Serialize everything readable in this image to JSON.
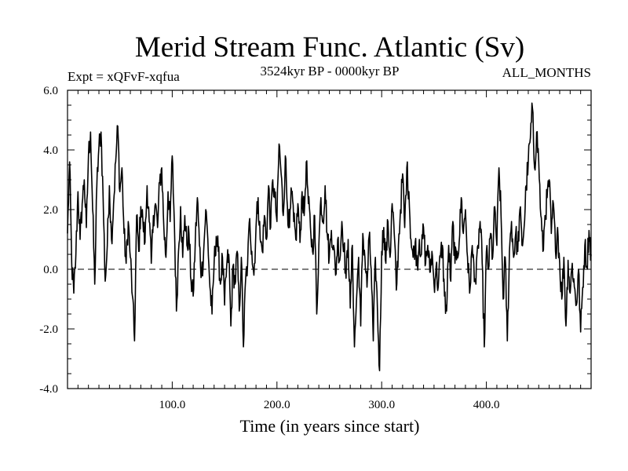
{
  "chart_data": {
    "type": "line",
    "title": "Merid Stream Func. Atlantic (Sv)",
    "subtitle_left": "Expt = xQFvF-xqfua",
    "subtitle_center": "3524kyr BP - 0000kyr BP",
    "subtitle_right": "ALL_MONTHS",
    "xlabel": "Time (in years since start)",
    "ylabel": "",
    "xlim": [
      0,
      500
    ],
    "ylim": [
      -4.0,
      6.0
    ],
    "xticks": [
      100,
      200,
      300,
      400
    ],
    "xtick_labels": [
      "100.0",
      "200.0",
      "300.0",
      "400.0"
    ],
    "yticks": [
      -4.0,
      -2.0,
      0.0,
      2.0,
      4.0,
      6.0
    ],
    "ytick_labels": [
      "-4.0",
      "-2.0",
      "0.0",
      "2.0",
      "4.0",
      "6.0"
    ],
    "reference_line": 0.0,
    "keypoints": [
      [
        0,
        1.2
      ],
      [
        2,
        3.6
      ],
      [
        4,
        0.2
      ],
      [
        6,
        -0.8
      ],
      [
        8,
        0.5
      ],
      [
        10,
        2.6
      ],
      [
        12,
        1.0
      ],
      [
        14,
        2.2
      ],
      [
        16,
        3.0
      ],
      [
        18,
        1.4
      ],
      [
        20,
        3.8
      ],
      [
        22,
        4.6
      ],
      [
        24,
        2.0
      ],
      [
        26,
        -0.5
      ],
      [
        28,
        2.8
      ],
      [
        30,
        4.1
      ],
      [
        32,
        4.6
      ],
      [
        34,
        2.4
      ],
      [
        36,
        -0.4
      ],
      [
        38,
        0.8
      ],
      [
        40,
        2.8
      ],
      [
        42,
        1.0
      ],
      [
        44,
        2.2
      ],
      [
        46,
        3.6
      ],
      [
        48,
        4.8
      ],
      [
        50,
        2.6
      ],
      [
        52,
        3.4
      ],
      [
        54,
        1.2
      ],
      [
        56,
        0.2
      ],
      [
        58,
        1.6
      ],
      [
        60,
        0.4
      ],
      [
        62,
        -0.9
      ],
      [
        64,
        -2.4
      ],
      [
        66,
        1.8
      ],
      [
        68,
        0.6
      ],
      [
        70,
        2.1
      ],
      [
        72,
        1.6
      ],
      [
        74,
        0.9
      ],
      [
        76,
        2.8
      ],
      [
        78,
        1.6
      ],
      [
        80,
        0.2
      ],
      [
        82,
        1.8
      ],
      [
        84,
        2.2
      ],
      [
        86,
        1.4
      ],
      [
        88,
        2.9
      ],
      [
        90,
        3.4
      ],
      [
        92,
        1.4
      ],
      [
        94,
        0.4
      ],
      [
        96,
        2.6
      ],
      [
        98,
        1.6
      ],
      [
        100,
        3.8
      ],
      [
        102,
        1.6
      ],
      [
        104,
        -1.4
      ],
      [
        106,
        0.6
      ],
      [
        108,
        2.1
      ],
      [
        110,
        0.4
      ],
      [
        112,
        1.8
      ],
      [
        114,
        0.8
      ],
      [
        116,
        1.2
      ],
      [
        118,
        -0.4
      ],
      [
        120,
        -0.9
      ],
      [
        122,
        0.9
      ],
      [
        124,
        2.4
      ],
      [
        126,
        0.8
      ],
      [
        128,
        -0.2
      ],
      [
        130,
        0.6
      ],
      [
        132,
        2.0
      ],
      [
        134,
        1.0
      ],
      [
        136,
        -0.6
      ],
      [
        138,
        -1.5
      ],
      [
        140,
        0.2
      ],
      [
        142,
        1.1
      ],
      [
        144,
        0.6
      ],
      [
        146,
        -0.5
      ],
      [
        148,
        0.4
      ],
      [
        150,
        -1.2
      ],
      [
        152,
        0.1
      ],
      [
        154,
        0.5
      ],
      [
        156,
        -1.9
      ],
      [
        158,
        0.1
      ],
      [
        160,
        -0.5
      ],
      [
        162,
        0.6
      ],
      [
        164,
        -1.4
      ],
      [
        166,
        0.4
      ],
      [
        168,
        -2.6
      ],
      [
        170,
        -0.4
      ],
      [
        172,
        0.2
      ],
      [
        174,
        1.7
      ],
      [
        176,
        0.6
      ],
      [
        178,
        -0.2
      ],
      [
        180,
        1.4
      ],
      [
        182,
        2.4
      ],
      [
        184,
        1.0
      ],
      [
        186,
        0.6
      ],
      [
        188,
        1.8
      ],
      [
        190,
        1.0
      ],
      [
        192,
        2.8
      ],
      [
        194,
        1.4
      ],
      [
        196,
        3.0
      ],
      [
        198,
        2.4
      ],
      [
        200,
        1.6
      ],
      [
        202,
        4.2
      ],
      [
        204,
        3.2
      ],
      [
        206,
        1.8
      ],
      [
        208,
        3.8
      ],
      [
        210,
        2.1
      ],
      [
        212,
        1.4
      ],
      [
        214,
        2.6
      ],
      [
        216,
        1.6
      ],
      [
        218,
        1.0
      ],
      [
        220,
        2.2
      ],
      [
        222,
        0.9
      ],
      [
        224,
        2.6
      ],
      [
        226,
        1.8
      ],
      [
        228,
        3.6
      ],
      [
        230,
        2.2
      ],
      [
        232,
        1.4
      ],
      [
        234,
        0.6
      ],
      [
        236,
        1.8
      ],
      [
        238,
        -1.5
      ],
      [
        240,
        0.8
      ],
      [
        242,
        2.4
      ],
      [
        244,
        1.6
      ],
      [
        246,
        2.8
      ],
      [
        248,
        1.2
      ],
      [
        250,
        0.4
      ],
      [
        252,
        1.3
      ],
      [
        254,
        0.8
      ],
      [
        256,
        -0.2
      ],
      [
        258,
        1.0
      ],
      [
        260,
        0.3
      ],
      [
        262,
        1.6
      ],
      [
        264,
        0.8
      ],
      [
        266,
        -0.3
      ],
      [
        268,
        1.0
      ],
      [
        270,
        -1.3
      ],
      [
        272,
        0.8
      ],
      [
        274,
        -2.6
      ],
      [
        276,
        -1.0
      ],
      [
        278,
        0.4
      ],
      [
        280,
        -1.9
      ],
      [
        282,
        1.2
      ],
      [
        284,
        0.4
      ],
      [
        286,
        -0.6
      ],
      [
        288,
        1.1
      ],
      [
        290,
        0.0
      ],
      [
        292,
        -2.4
      ],
      [
        294,
        0.4
      ],
      [
        296,
        -1.4
      ],
      [
        298,
        -3.4
      ],
      [
        300,
        0.6
      ],
      [
        302,
        1.4
      ],
      [
        304,
        0.2
      ],
      [
        306,
        1.6
      ],
      [
        308,
        0.4
      ],
      [
        310,
        2.2
      ],
      [
        312,
        1.2
      ],
      [
        314,
        -0.7
      ],
      [
        316,
        0.8
      ],
      [
        318,
        2.0
      ],
      [
        320,
        3.2
      ],
      [
        322,
        1.4
      ],
      [
        324,
        3.4
      ],
      [
        326,
        2.6
      ],
      [
        328,
        1.0
      ],
      [
        330,
        0.4
      ],
      [
        332,
        0.9
      ],
      [
        334,
        0.2
      ],
      [
        336,
        1.0
      ],
      [
        338,
        0.5
      ],
      [
        340,
        1.4
      ],
      [
        342,
        0.2
      ],
      [
        344,
        0.8
      ],
      [
        346,
        -0.1
      ],
      [
        348,
        0.6
      ],
      [
        350,
        -0.5
      ],
      [
        352,
        0.1
      ],
      [
        354,
        -0.6
      ],
      [
        356,
        0.4
      ],
      [
        358,
        0.8
      ],
      [
        360,
        -0.9
      ],
      [
        362,
        -1.4
      ],
      [
        364,
        0.8
      ],
      [
        366,
        -0.4
      ],
      [
        368,
        1.6
      ],
      [
        370,
        0.2
      ],
      [
        372,
        0.6
      ],
      [
        374,
        0.9
      ],
      [
        376,
        2.4
      ],
      [
        378,
        1.2
      ],
      [
        380,
        2.0
      ],
      [
        382,
        0.4
      ],
      [
        384,
        -0.8
      ],
      [
        386,
        0.6
      ],
      [
        388,
        0.2
      ],
      [
        390,
        -0.5
      ],
      [
        392,
        0.8
      ],
      [
        394,
        1.6
      ],
      [
        396,
        0.2
      ],
      [
        398,
        -2.6
      ],
      [
        400,
        0.6
      ],
      [
        402,
        0.0
      ],
      [
        404,
        1.2
      ],
      [
        406,
        0.4
      ],
      [
        408,
        2.1
      ],
      [
        410,
        0.8
      ],
      [
        412,
        3.4
      ],
      [
        414,
        1.8
      ],
      [
        416,
        -1.0
      ],
      [
        418,
        0.4
      ],
      [
        420,
        -2.4
      ],
      [
        422,
        0.6
      ],
      [
        424,
        1.6
      ],
      [
        426,
        0.4
      ],
      [
        428,
        1.2
      ],
      [
        430,
        0.6
      ],
      [
        432,
        2.0
      ],
      [
        434,
        0.8
      ],
      [
        436,
        1.4
      ],
      [
        438,
        2.8
      ],
      [
        440,
        3.6
      ],
      [
        442,
        4.4
      ],
      [
        444,
        5.4
      ],
      [
        446,
        3.4
      ],
      [
        448,
        4.6
      ],
      [
        450,
        3.6
      ],
      [
        452,
        1.8
      ],
      [
        454,
        0.6
      ],
      [
        456,
        1.8
      ],
      [
        458,
        2.4
      ],
      [
        460,
        3.0
      ],
      [
        462,
        1.2
      ],
      [
        464,
        2.2
      ],
      [
        466,
        0.6
      ],
      [
        468,
        1.4
      ],
      [
        470,
        0.2
      ],
      [
        472,
        -1.0
      ],
      [
        474,
        0.4
      ],
      [
        476,
        -1.9
      ],
      [
        478,
        0.3
      ],
      [
        480,
        -0.8
      ],
      [
        482,
        0.2
      ],
      [
        484,
        -0.6
      ],
      [
        486,
        -1.2
      ],
      [
        488,
        0.0
      ],
      [
        490,
        -2.1
      ],
      [
        492,
        -0.6
      ],
      [
        494,
        0.8
      ],
      [
        496,
        0.1
      ],
      [
        498,
        1.3
      ],
      [
        500,
        0.5
      ]
    ]
  }
}
